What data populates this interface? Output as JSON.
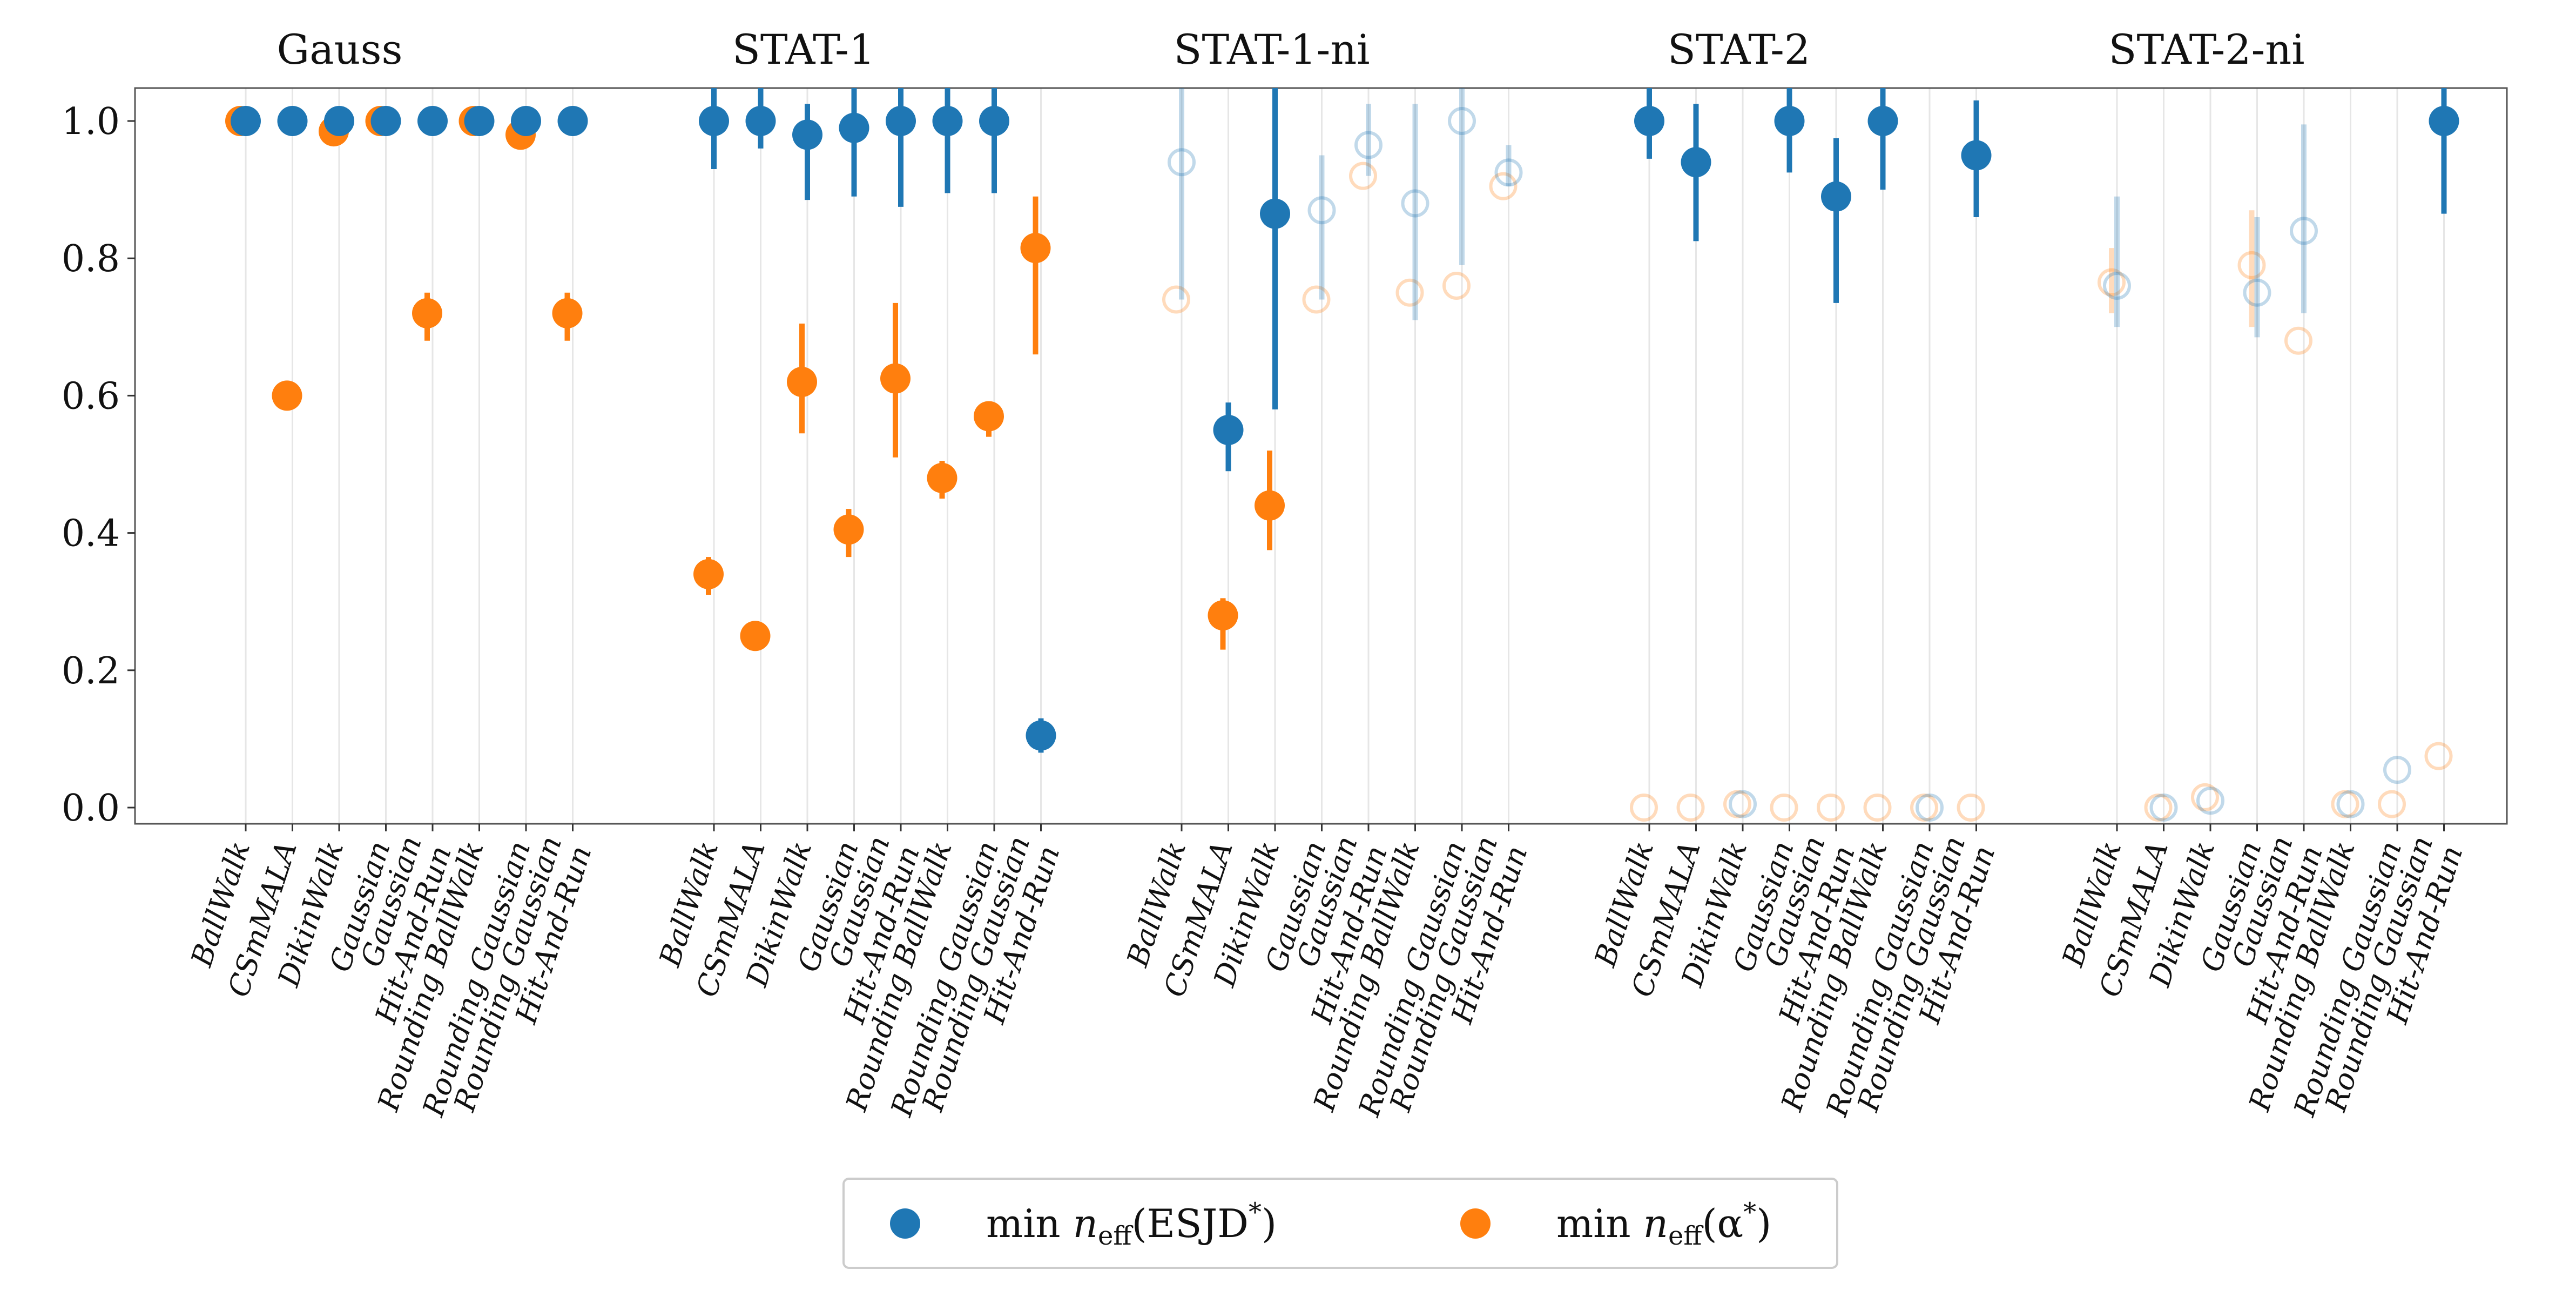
{
  "chart_data": {
    "type": "scatter",
    "title": "",
    "xlabel": "",
    "ylabel": "",
    "ylim": [
      -0.02,
      1.05
    ],
    "yticks": [
      "0.0",
      "0.2",
      "0.4",
      "0.6",
      "0.8",
      "1.0"
    ],
    "grid": "vertical lines at each method",
    "legend_position": "bottom-center",
    "legend": {
      "prefix": "min ",
      "symbol": "n",
      "subscript": "eff",
      "entries": [
        {
          "arg": "(ESJD",
          "sup": "*",
          "close": ")",
          "color": "#1f77b4"
        },
        {
          "arg": "(α",
          "sup": "*",
          "close": ")",
          "color": "#ff7f0e"
        }
      ]
    },
    "colors": {
      "esjd": "#1f77b4",
      "alpha": "#ff7f0e"
    },
    "methods": [
      "BallWalk",
      "CSmMALA",
      "DikinWalk",
      "Gaussian",
      "Gaussian\nHit-And-Run",
      "Rounding BallWalk",
      "Rounding Gaussian",
      "Rounding Gaussian\nHit-And-Run"
    ],
    "groups": [
      {
        "name": "Gauss",
        "esjd": {
          "values": [
            1.0,
            1.0,
            1.0,
            1.0,
            1.0,
            1.0,
            1.0,
            1.0
          ],
          "lower": [
            null,
            null,
            null,
            null,
            null,
            null,
            null,
            null
          ],
          "upper": [
            null,
            null,
            null,
            null,
            null,
            null,
            null,
            null
          ],
          "faded": [
            false,
            false,
            false,
            false,
            false,
            false,
            false,
            false
          ]
        },
        "alpha": {
          "values": [
            1.0,
            0.6,
            0.985,
            1.0,
            0.72,
            1.0,
            0.98,
            0.72
          ],
          "lower": [
            null,
            null,
            null,
            null,
            0.68,
            null,
            null,
            0.68
          ],
          "upper": [
            null,
            null,
            null,
            null,
            0.75,
            null,
            null,
            0.75
          ],
          "faded": [
            false,
            false,
            false,
            false,
            false,
            false,
            false,
            false
          ]
        }
      },
      {
        "name": "STAT-1",
        "esjd": {
          "values": [
            1.0,
            1.0,
            0.98,
            0.99,
            1.0,
            1.0,
            1.0,
            0.105
          ],
          "lower": [
            0.93,
            0.96,
            0.885,
            0.89,
            0.875,
            0.895,
            0.895,
            0.08
          ],
          "upper": [
            1.05,
            1.05,
            1.025,
            1.05,
            1.05,
            1.05,
            1.05,
            0.13
          ],
          "faded": [
            false,
            false,
            false,
            false,
            false,
            false,
            false,
            false
          ]
        },
        "alpha": {
          "values": [
            0.34,
            0.25,
            0.62,
            0.405,
            0.625,
            0.48,
            0.57,
            0.815
          ],
          "lower": [
            0.31,
            null,
            0.545,
            0.365,
            0.51,
            0.45,
            0.54,
            0.66
          ],
          "upper": [
            0.365,
            null,
            0.705,
            0.435,
            0.735,
            0.505,
            0.585,
            0.89
          ],
          "faded": [
            false,
            false,
            false,
            false,
            false,
            false,
            false,
            false
          ]
        }
      },
      {
        "name": "STAT-1-ni",
        "esjd": {
          "values": [
            0.94,
            0.55,
            0.865,
            0.87,
            0.965,
            0.88,
            1.0,
            0.925
          ],
          "lower": [
            0.74,
            0.49,
            0.58,
            0.74,
            0.92,
            0.71,
            0.79,
            0.905
          ],
          "upper": [
            1.05,
            0.59,
            1.05,
            0.95,
            1.025,
            1.025,
            1.05,
            0.965
          ],
          "faded": [
            true,
            false,
            false,
            true,
            true,
            true,
            true,
            true
          ]
        },
        "alpha": {
          "values": [
            0.74,
            0.28,
            0.44,
            0.74,
            0.92,
            0.75,
            0.76,
            0.905
          ],
          "lower": [
            null,
            0.23,
            0.375,
            null,
            null,
            null,
            null,
            null
          ],
          "upper": [
            null,
            0.305,
            0.52,
            null,
            null,
            null,
            null,
            null
          ],
          "faded": [
            true,
            false,
            false,
            true,
            true,
            true,
            true,
            true
          ]
        }
      },
      {
        "name": "STAT-2",
        "esjd": {
          "values": [
            1.0,
            0.94,
            0.005,
            1.0,
            0.89,
            1.0,
            0.0,
            0.95
          ],
          "lower": [
            0.945,
            0.825,
            null,
            0.925,
            0.735,
            0.9,
            null,
            0.86
          ],
          "upper": [
            1.05,
            1.025,
            null,
            1.05,
            0.975,
            1.05,
            null,
            1.03
          ],
          "faded": [
            false,
            false,
            true,
            false,
            false,
            false,
            true,
            false
          ]
        },
        "alpha": {
          "values": [
            0.0,
            0.0,
            0.005,
            0.0,
            0.0,
            0.0,
            0.0,
            0.0
          ],
          "lower": [
            null,
            null,
            null,
            null,
            null,
            null,
            null,
            null
          ],
          "upper": [
            null,
            null,
            null,
            null,
            null,
            null,
            null,
            null
          ],
          "faded": [
            true,
            true,
            true,
            true,
            true,
            true,
            true,
            true
          ]
        }
      },
      {
        "name": "STAT-2-ni",
        "esjd": {
          "values": [
            0.76,
            0.0,
            0.01,
            0.75,
            0.84,
            0.005,
            0.055,
            1.0
          ],
          "lower": [
            0.7,
            null,
            null,
            0.685,
            0.72,
            null,
            null,
            0.865
          ],
          "upper": [
            0.89,
            null,
            null,
            0.86,
            0.995,
            null,
            null,
            1.05
          ],
          "faded": [
            true,
            true,
            true,
            true,
            true,
            true,
            true,
            false
          ]
        },
        "alpha": {
          "values": [
            0.765,
            0.0,
            0.015,
            0.79,
            0.68,
            0.005,
            0.005,
            0.075
          ],
          "lower": [
            0.72,
            null,
            null,
            0.7,
            null,
            null,
            null,
            null
          ],
          "upper": [
            0.815,
            null,
            null,
            0.87,
            null,
            null,
            null,
            null
          ],
          "faded": [
            true,
            true,
            true,
            true,
            true,
            true,
            true,
            true
          ]
        }
      }
    ]
  }
}
